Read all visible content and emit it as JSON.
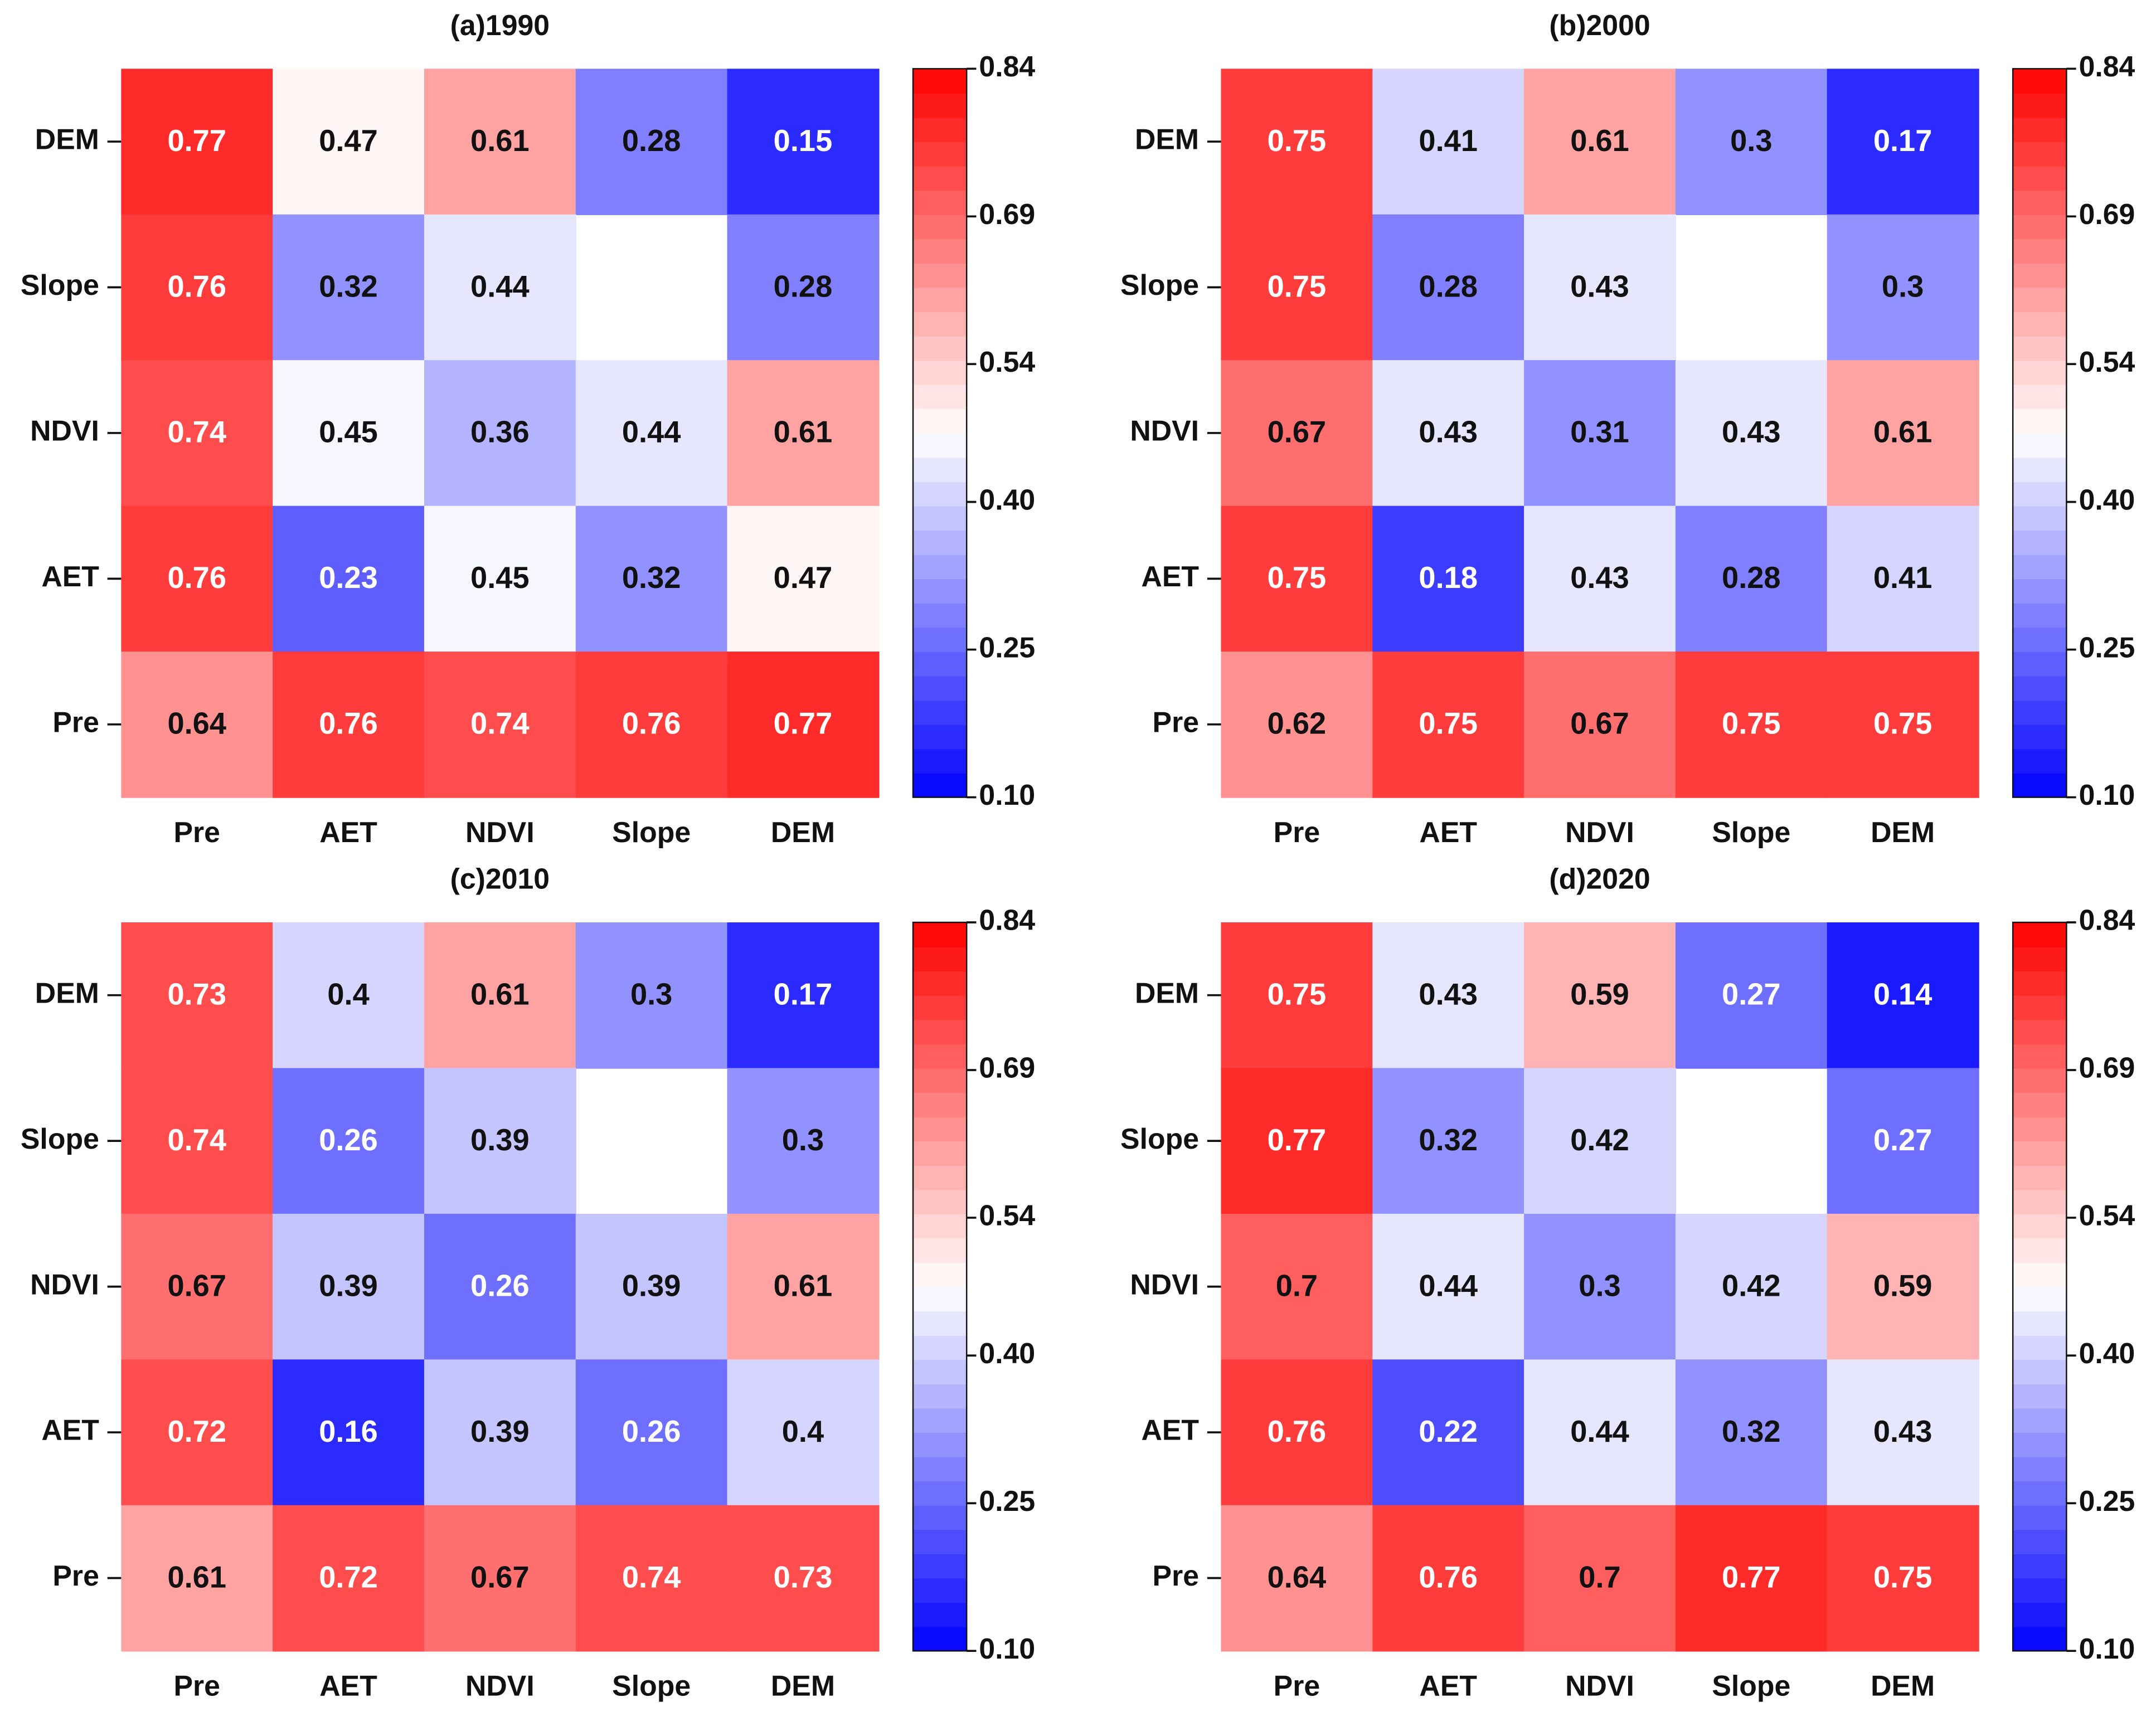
{
  "chart_data": [
    {
      "type": "heatmap",
      "title": "(a)1990",
      "x_categories": [
        "Pre",
        "AET",
        "NDVI",
        "Slope",
        "DEM"
      ],
      "y_categories": [
        "DEM",
        "Slope",
        "NDVI",
        "AET",
        "Pre"
      ],
      "values": [
        [
          0.77,
          0.47,
          0.61,
          0.28,
          0.15
        ],
        [
          0.76,
          0.32,
          0.44,
          null,
          0.28
        ],
        [
          0.74,
          0.45,
          0.36,
          0.44,
          0.61
        ],
        [
          0.76,
          0.23,
          0.45,
          0.32,
          0.47
        ],
        [
          0.64,
          0.76,
          0.74,
          0.76,
          0.77
        ]
      ],
      "clim": [
        0.1,
        0.84
      ],
      "cticks": [
        {
          "value": 0.1,
          "label": "0.10"
        },
        0.25,
        {
          "value": 0.4,
          "label": "0.40"
        },
        0.54,
        0.69,
        0.84
      ],
      "colors": [
        "#0000ff",
        "#ffffff",
        "#ff0000"
      ],
      "levels": 30
    },
    {
      "type": "heatmap",
      "title": "(b)2000",
      "x_categories": [
        "Pre",
        "AET",
        "NDVI",
        "Slope",
        "DEM"
      ],
      "y_categories": [
        "DEM",
        "Slope",
        "NDVI",
        "AET",
        "Pre"
      ],
      "values": [
        [
          0.75,
          0.41,
          0.61,
          0.3,
          0.17
        ],
        [
          0.75,
          0.28,
          0.43,
          null,
          0.3
        ],
        [
          0.67,
          0.43,
          0.31,
          0.43,
          0.61
        ],
        [
          0.75,
          0.18,
          0.43,
          0.28,
          0.41
        ],
        [
          0.62,
          0.75,
          0.67,
          0.75,
          0.75
        ]
      ],
      "clim": [
        0.1,
        0.84
      ],
      "cticks": [
        {
          "value": 0.1,
          "label": "0.10"
        },
        0.25,
        {
          "value": 0.4,
          "label": "0.40"
        },
        0.54,
        0.69,
        0.84
      ],
      "colors": [
        "#0000ff",
        "#ffffff",
        "#ff0000"
      ],
      "levels": 30
    },
    {
      "type": "heatmap",
      "title": "(c)2010",
      "x_categories": [
        "Pre",
        "AET",
        "NDVI",
        "Slope",
        "DEM"
      ],
      "y_categories": [
        "DEM",
        "Slope",
        "NDVI",
        "AET",
        "Pre"
      ],
      "values": [
        [
          0.73,
          0.4,
          0.61,
          0.3,
          0.17
        ],
        [
          0.74,
          0.26,
          0.39,
          null,
          0.3
        ],
        [
          0.67,
          0.39,
          0.26,
          0.39,
          0.61
        ],
        [
          0.72,
          0.16,
          0.39,
          0.26,
          0.4
        ],
        [
          0.61,
          0.72,
          0.67,
          0.74,
          0.73
        ]
      ],
      "clim": [
        0.1,
        0.84
      ],
      "cticks": [
        {
          "value": 0.1,
          "label": "0.10"
        },
        0.25,
        {
          "value": 0.4,
          "label": "0.40"
        },
        0.54,
        0.69,
        0.84
      ],
      "colors": [
        "#0000ff",
        "#ffffff",
        "#ff0000"
      ],
      "levels": 30
    },
    {
      "type": "heatmap",
      "title": "(d)2020",
      "x_categories": [
        "Pre",
        "AET",
        "NDVI",
        "Slope",
        "DEM"
      ],
      "y_categories": [
        "DEM",
        "Slope",
        "NDVI",
        "AET",
        "Pre"
      ],
      "values": [
        [
          0.75,
          0.43,
          0.59,
          0.27,
          0.14
        ],
        [
          0.77,
          0.32,
          0.42,
          null,
          0.27
        ],
        [
          0.7,
          0.44,
          0.3,
          0.42,
          0.59
        ],
        [
          0.76,
          0.22,
          0.44,
          0.32,
          0.43
        ],
        [
          0.64,
          0.76,
          0.7,
          0.77,
          0.75
        ]
      ],
      "clim": [
        0.1,
        0.84
      ],
      "cticks": [
        {
          "value": 0.1,
          "label": "0.10"
        },
        0.25,
        {
          "value": 0.4,
          "label": "0.40"
        },
        0.54,
        0.69,
        0.84
      ],
      "colors": [
        "#0000ff",
        "#ffffff",
        "#ff0000"
      ],
      "levels": 30
    }
  ]
}
